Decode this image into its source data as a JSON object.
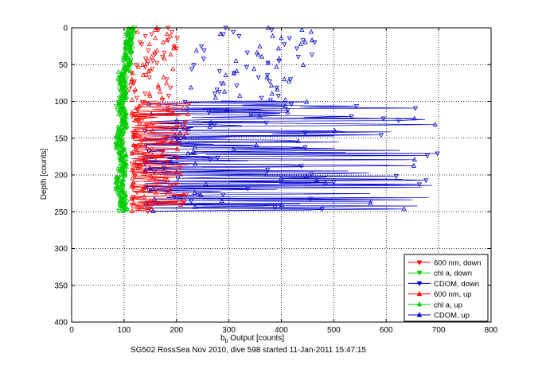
{
  "chart_data": {
    "type": "scatter",
    "xlabel_main": "b",
    "xlabel_sub": "b",
    "xlabel_rest": " Output [counts]",
    "ylabel": "Depth [counts]",
    "caption": "SG502 RossSea Nov 2010, dive 598 started 11-Jan-2011 15:47:15",
    "xlim": [
      0,
      800
    ],
    "ylim": [
      0,
      400
    ],
    "y_reversed": true,
    "grid": true,
    "grid_style": "dotted",
    "legend_position": "bottom-right",
    "x_ticks": [
      "0",
      "100",
      "200",
      "300",
      "400",
      "500",
      "600",
      "700",
      "800"
    ],
    "y_ticks": [
      "0",
      "50",
      "100",
      "150",
      "200",
      "250",
      "300",
      "350",
      "400"
    ],
    "series": [
      {
        "name": "600 nm, down",
        "color": "#ff0000",
        "marker": "triangle-down",
        "connected": true
      },
      {
        "name": "chl a, down",
        "color": "#00cc00",
        "marker": "triangle-down",
        "connected": true
      },
      {
        "name": "CDOM, down",
        "color": "#0000cc",
        "marker": "triangle-down",
        "connected": true
      },
      {
        "name": "600 nm, up",
        "color": "#ff0000",
        "marker": "triangle-up",
        "connected": true
      },
      {
        "name": "chl a, up",
        "color": "#00cc00",
        "marker": "triangle-up",
        "connected": true
      },
      {
        "name": "CDOM, up",
        "color": "#0000cc",
        "marker": "triangle-up",
        "connected": true
      }
    ],
    "profiles": {
      "depth_max": 250,
      "chl": {
        "base": 105,
        "spread": 10
      },
      "red": {
        "base_upper": 150,
        "spread_upper": 40,
        "base_lower": 115,
        "spread_lower": 70
      },
      "cdom": {
        "base_upper": 260,
        "spread_upper": 120,
        "base_lower": 140,
        "spread_lower": 560
      }
    }
  }
}
